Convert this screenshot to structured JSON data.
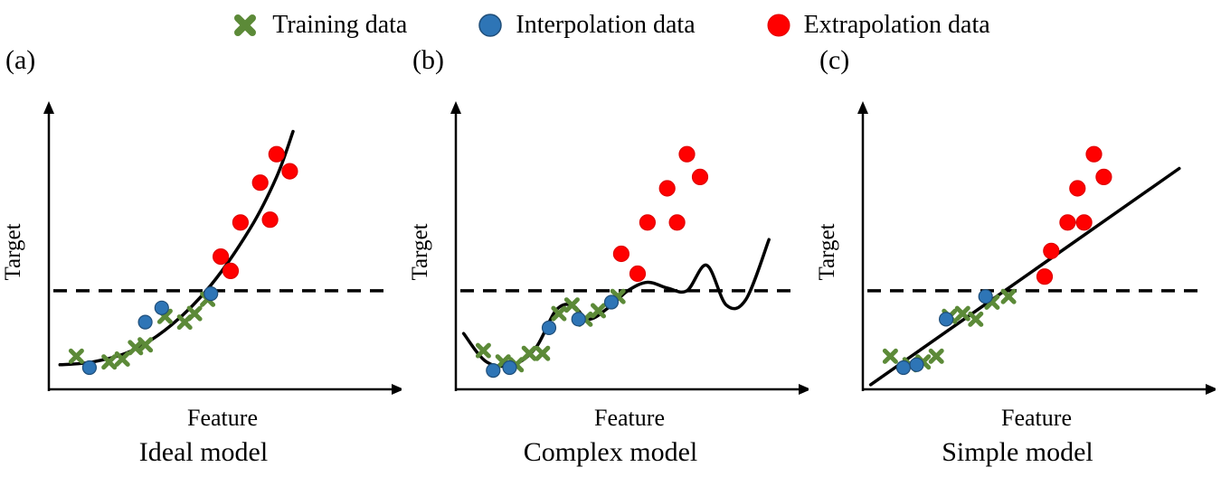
{
  "legend": {
    "items": [
      {
        "label": "Training data",
        "marker": "x-cross",
        "color_key": "training"
      },
      {
        "label": "Interpolation data",
        "marker": "circle",
        "color_key": "interpolation"
      },
      {
        "label": "Extrapolation data",
        "marker": "circle",
        "color_key": "extrapolation"
      }
    ]
  },
  "colors": {
    "training": "#5C8A38",
    "training_edge": "#3E6323",
    "interpolation": "#2E75B6",
    "interpolation_edge": "#1F4E79",
    "extrapolation": "#FF0000",
    "extrapolation_edge": "#E00000",
    "curve": "#000000",
    "dashed_line": "#000000",
    "axis": "#000000"
  },
  "chart_data": {
    "type": "scatter",
    "description": "Three-panel conceptual figure comparing model fits: ideal, complex (overfit), simple (underfit). Dashed horizontal line marks the boundary between interpolation and extrapolation regions. Axes are unlabeled conceptual scales (no ticks).",
    "axis_ticks": "none",
    "panels": [
      {
        "panel_label": "(a)",
        "caption": "Ideal model",
        "xlabel": "Feature",
        "ylabel": "Target",
        "xlim": [
          0,
          100
        ],
        "ylim": [
          0,
          100
        ],
        "dashed_line_y": 34,
        "curve_points": [
          [
            2,
            8
          ],
          [
            12,
            9
          ],
          [
            24,
            13
          ],
          [
            36,
            22
          ],
          [
            48,
            36
          ],
          [
            60,
            56
          ],
          [
            68,
            74
          ],
          [
            73,
            90
          ]
        ],
        "series": [
          {
            "name": "Training data",
            "marker": "x",
            "color_key": "training",
            "points": [
              [
                7,
                11
              ],
              [
                17,
                9
              ],
              [
                21,
                10
              ],
              [
                25,
                14
              ],
              [
                28,
                15
              ],
              [
                34,
                25
              ],
              [
                40,
                23
              ],
              [
                43,
                26
              ],
              [
                47,
                31
              ]
            ]
          },
          {
            "name": "Interpolation data",
            "marker": "circle",
            "color_key": "interpolation",
            "points": [
              [
                11,
                7
              ],
              [
                28,
                23
              ],
              [
                33,
                28
              ],
              [
                48,
                33
              ]
            ]
          },
          {
            "name": "Extrapolation data",
            "marker": "circle",
            "color_key": "extrapolation",
            "points": [
              [
                51,
                46
              ],
              [
                54,
                41
              ],
              [
                57,
                58
              ],
              [
                63,
                72
              ],
              [
                66,
                59
              ],
              [
                68,
                82
              ],
              [
                72,
                76
              ]
            ]
          }
        ]
      },
      {
        "panel_label": "(b)",
        "caption": "Complex model",
        "xlabel": "Feature",
        "ylabel": "Target",
        "xlim": [
          0,
          100
        ],
        "ylim": [
          0,
          100
        ],
        "dashed_line_y": 34,
        "curve_points": [
          [
            1,
            19
          ],
          [
            8,
            9
          ],
          [
            16,
            8
          ],
          [
            23,
            14
          ],
          [
            29,
            27
          ],
          [
            34,
            29
          ],
          [
            39,
            24
          ],
          [
            45,
            28
          ],
          [
            51,
            34
          ],
          [
            57,
            37
          ],
          [
            63,
            35
          ],
          [
            69,
            34
          ],
          [
            75,
            43
          ],
          [
            81,
            29
          ],
          [
            87,
            31
          ],
          [
            94,
            52
          ]
        ],
        "series": [
          {
            "name": "Training data",
            "marker": "x",
            "color_key": "training",
            "points": [
              [
                7,
                13
              ],
              [
                13,
                9
              ],
              [
                17,
                8
              ],
              [
                21,
                12
              ],
              [
                25,
                12
              ],
              [
                30,
                26
              ],
              [
                34,
                29
              ],
              [
                38,
                24
              ],
              [
                42,
                27
              ],
              [
                48,
                32
              ]
            ]
          },
          {
            "name": "Interpolation data",
            "marker": "circle",
            "color_key": "interpolation",
            "points": [
              [
                10,
                6
              ],
              [
                15,
                7
              ],
              [
                27,
                21
              ],
              [
                36,
                24
              ],
              [
                46,
                30
              ]
            ]
          },
          {
            "name": "Extrapolation data",
            "marker": "circle",
            "color_key": "extrapolation",
            "points": [
              [
                49,
                47
              ],
              [
                54,
                40
              ],
              [
                57,
                58
              ],
              [
                63,
                70
              ],
              [
                66,
                58
              ],
              [
                69,
                82
              ],
              [
                73,
                74
              ]
            ]
          }
        ]
      },
      {
        "panel_label": "(c)",
        "caption": "Simple model",
        "xlabel": "Feature",
        "ylabel": "Target",
        "xlim": [
          0,
          100
        ],
        "ylim": [
          0,
          100
        ],
        "dashed_line_y": 34,
        "curve_points": [
          [
            1,
            1
          ],
          [
            95,
            77
          ]
        ],
        "series": [
          {
            "name": "Training data",
            "marker": "x",
            "color_key": "training",
            "points": [
              [
                7,
                11
              ],
              [
                13,
                8
              ],
              [
                17,
                9
              ],
              [
                21,
                11
              ],
              [
                25,
                25
              ],
              [
                29,
                26
              ],
              [
                33,
                24
              ],
              [
                38,
                30
              ],
              [
                43,
                32
              ]
            ]
          },
          {
            "name": "Interpolation data",
            "marker": "circle",
            "color_key": "interpolation",
            "points": [
              [
                11,
                7
              ],
              [
                15,
                8
              ],
              [
                24,
                24
              ],
              [
                36,
                32
              ]
            ]
          },
          {
            "name": "Extrapolation data",
            "marker": "circle",
            "color_key": "extrapolation",
            "points": [
              [
                54,
                39
              ],
              [
                56,
                48
              ],
              [
                61,
                58
              ],
              [
                64,
                70
              ],
              [
                66,
                58
              ],
              [
                69,
                82
              ],
              [
                72,
                74
              ]
            ]
          }
        ]
      }
    ]
  }
}
